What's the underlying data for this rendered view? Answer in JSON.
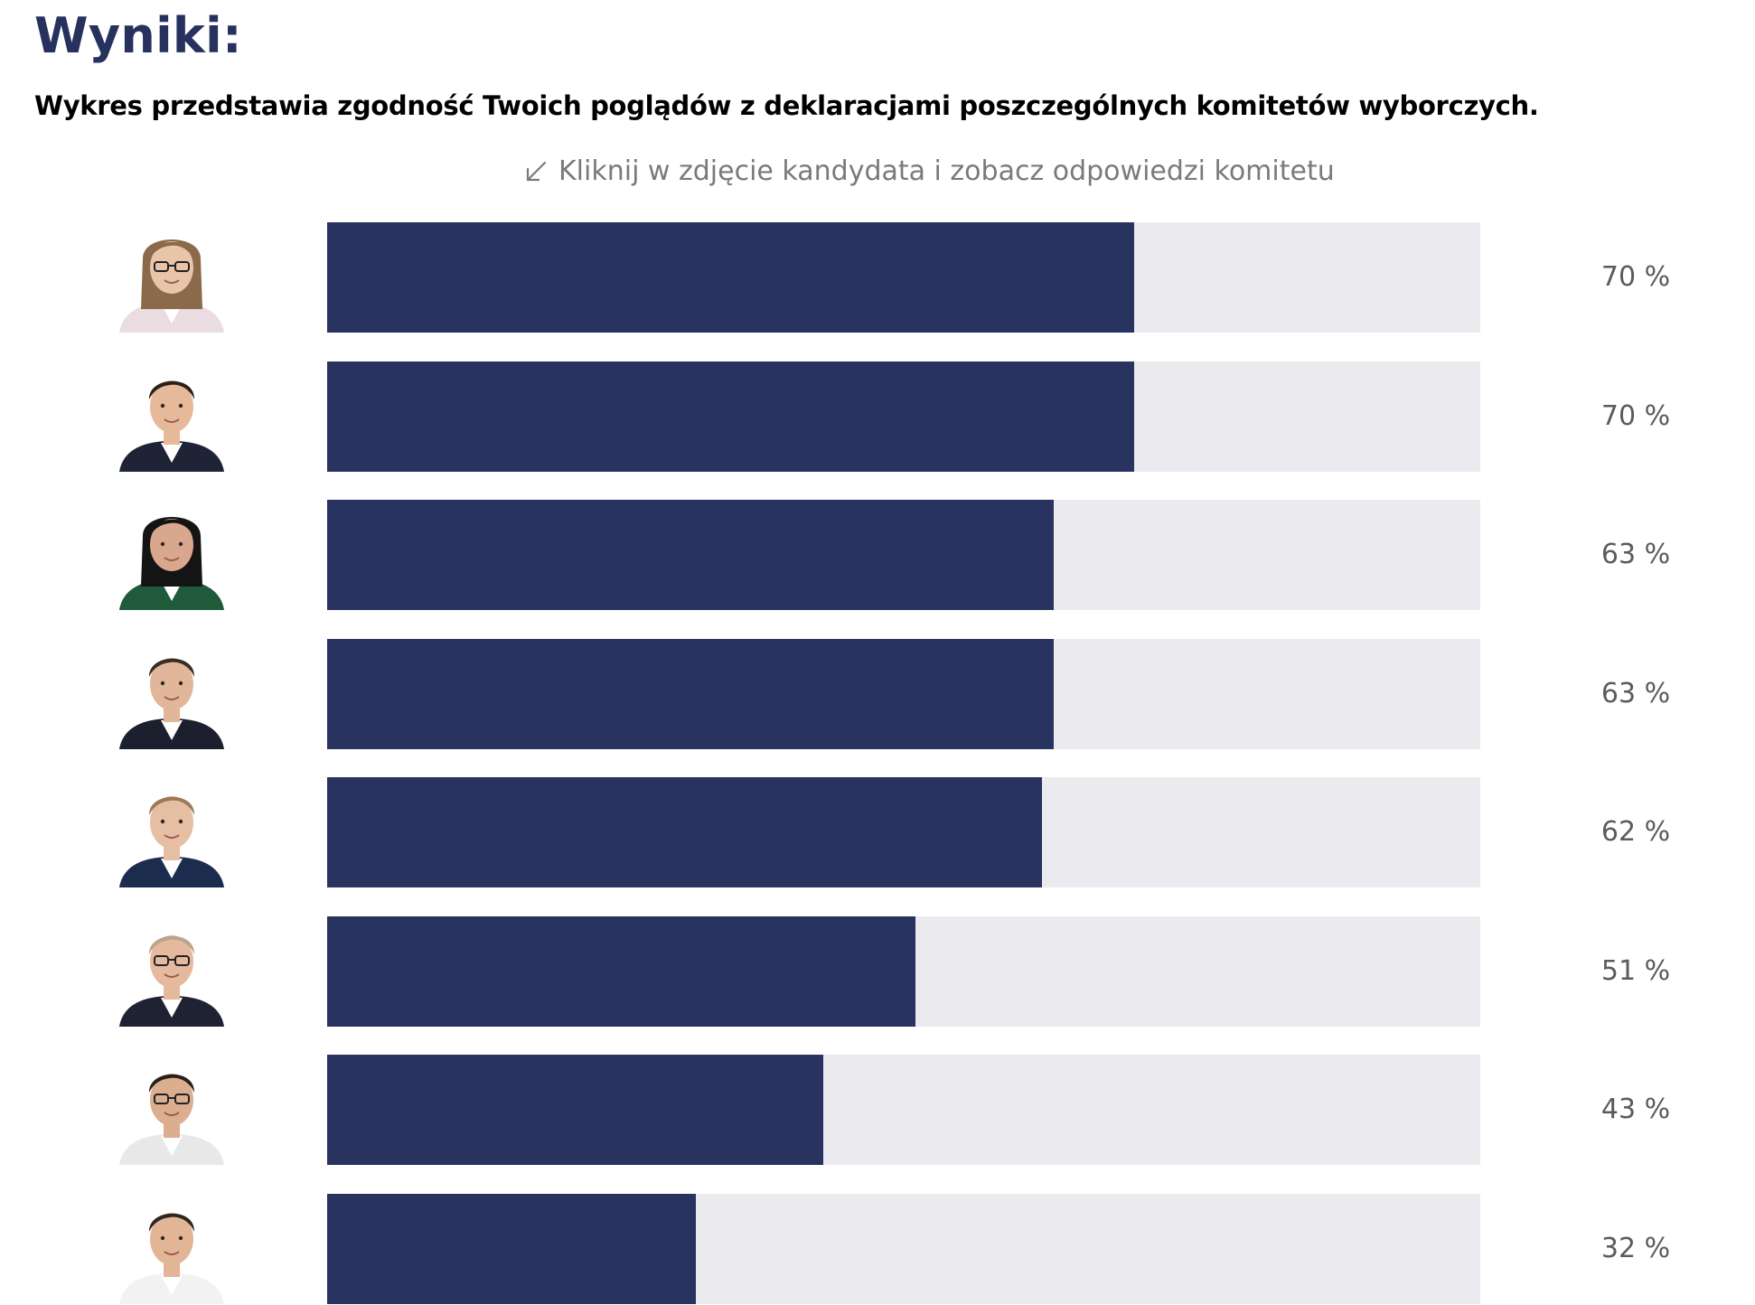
{
  "header": {
    "title": "Wyniki:",
    "description": "Wykres przedstawia zgodność Twoich poglądów z deklaracjami poszczególnych komitetów wyborczych.",
    "hint": "Kliknij w zdjęcie kandydata i zobacz odpowiedzi komitetu",
    "hint_icon": "arrow-down-left-icon"
  },
  "colors": {
    "title": "#26315e",
    "bar_fill": "#28335f",
    "bar_track": "#ebebef",
    "value_text": "#5b5b5b"
  },
  "chart_data": {
    "type": "bar",
    "orientation": "horizontal",
    "categories": [
      "",
      "",
      "",
      "",
      "",
      "",
      "",
      ""
    ],
    "values": [
      70,
      70,
      63,
      63,
      62,
      51,
      43,
      32
    ],
    "value_labels": [
      "70 %",
      "70 %",
      "63 %",
      "63 %",
      "62 %",
      "51 %",
      "43 %",
      "32 %"
    ],
    "xlim": [
      0,
      100
    ],
    "unit": "%",
    "grid": false,
    "legend": "none",
    "title": "",
    "xlabel": "",
    "ylabel": ""
  },
  "candidates": [
    {
      "avatar_icon": "candidate-photo-icon",
      "hair": "#8a6a4a",
      "suit": "#e9dde2",
      "skin": "#e8c4a8",
      "glasses": true,
      "long_hair": true
    },
    {
      "avatar_icon": "candidate-photo-icon",
      "hair": "#2b2119",
      "suit": "#1f2336",
      "skin": "#e7b99b",
      "glasses": false,
      "long_hair": false
    },
    {
      "avatar_icon": "candidate-photo-icon",
      "hair": "#141414",
      "suit": "#1f5a3a",
      "skin": "#d9a78d",
      "glasses": false,
      "long_hair": true
    },
    {
      "avatar_icon": "candidate-photo-icon",
      "hair": "#3a2d24",
      "suit": "#1c1f2e",
      "skin": "#e2b699",
      "glasses": false,
      "long_hair": false
    },
    {
      "avatar_icon": "candidate-photo-icon",
      "hair": "#9a7a58",
      "suit": "#1b2c4e",
      "skin": "#e6bea3",
      "glasses": false,
      "long_hair": false
    },
    {
      "avatar_icon": "candidate-photo-icon",
      "hair": "#b9a48c",
      "suit": "#1e2233",
      "skin": "#e4b99e",
      "glasses": true,
      "long_hair": false
    },
    {
      "avatar_icon": "candidate-photo-icon",
      "hair": "#2a2018",
      "suit": "#e8e8e8",
      "skin": "#dcae90",
      "glasses": true,
      "long_hair": false
    },
    {
      "avatar_icon": "candidate-photo-icon",
      "hair": "#2e2620",
      "suit": "#f2f2f2",
      "skin": "#e3b597",
      "glasses": false,
      "long_hair": false
    }
  ]
}
